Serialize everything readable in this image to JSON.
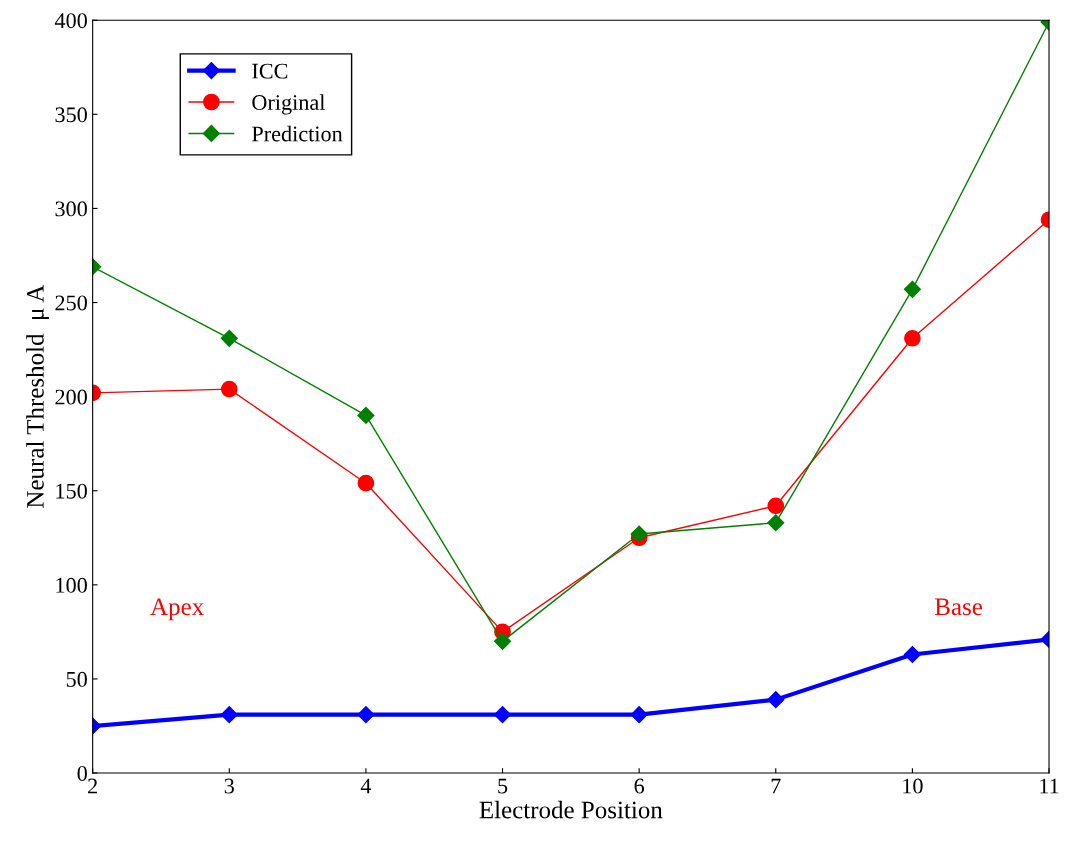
{
  "chart_data": {
    "type": "line",
    "xlabel": "Electrode Position",
    "ylabel": "Neural Threshold  μ A",
    "categories": [
      "2",
      "3",
      "4",
      "5",
      "6",
      "7",
      "10",
      "11"
    ],
    "series": [
      {
        "name": "ICC",
        "color": "#0000ff",
        "marker": "diamond",
        "values": [
          25,
          31,
          31,
          31,
          31,
          39,
          63,
          71
        ]
      },
      {
        "name": "Original",
        "color": "#ff0000",
        "marker": "circle",
        "values": [
          202,
          204,
          154,
          75,
          125,
          142,
          231,
          294
        ]
      },
      {
        "name": "Prediction",
        "color": "#008000",
        "marker": "diamond",
        "values": [
          269,
          231,
          190,
          70,
          127,
          133,
          257,
          399
        ]
      }
    ],
    "ylim": [
      0,
      400
    ],
    "yticks": [
      0,
      50,
      100,
      150,
      200,
      250,
      300,
      350,
      400
    ],
    "grid": false,
    "legend": "top left",
    "annotations": [
      "Apex",
      "Base"
    ]
  }
}
